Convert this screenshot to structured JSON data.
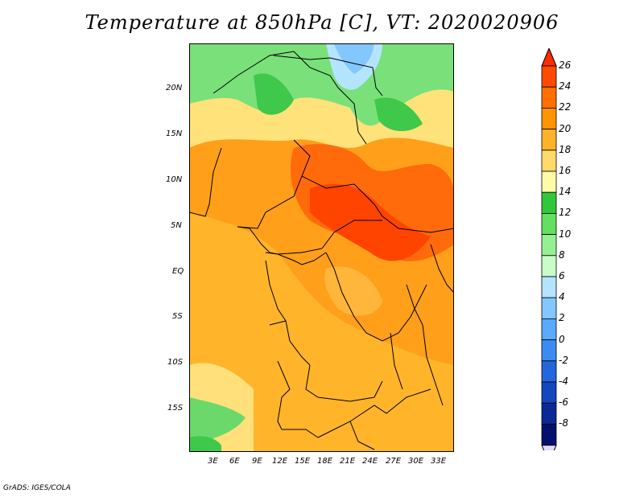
{
  "title": "Temperature at 850hPa [C], VT: 2020020906",
  "footer": "GrADS: IGES/COLA",
  "lat_ticks": [
    "20N",
    "15N",
    "10N",
    "5N",
    "EQ",
    "5S",
    "10S",
    "15S"
  ],
  "lon_ticks": [
    "3E",
    "6E",
    "9E",
    "12E",
    "15E",
    "18E",
    "21E",
    "24E",
    "27E",
    "30E",
    "33E"
  ],
  "colorbar": {
    "labels": [
      "26",
      "24",
      "22",
      "20",
      "18",
      "16",
      "14",
      "12",
      "10",
      "8",
      "6",
      "4",
      "2",
      "0",
      "-2",
      "-4",
      "-6",
      "-8"
    ],
    "colors": [
      "#ff2a00",
      "#ff4a00",
      "#ff7000",
      "#ff9400",
      "#ffb22a",
      "#ffda6a",
      "#fffaa8",
      "#2fc83a",
      "#64e060",
      "#94f090",
      "#c8fcc8",
      "#b4e4ff",
      "#82c8ff",
      "#5aaaff",
      "#3a8cf0",
      "#2466dc",
      "#1446be",
      "#0a2896",
      "#00126e",
      "#dcdcff"
    ],
    "palette_note": "colors ordered top (warm) to bottom (cold)"
  },
  "map": {
    "background_color": "#ff9f1a",
    "regions": [
      {
        "name": "north-green",
        "color": "#5ad262"
      },
      {
        "name": "north-yellow",
        "color": "#ffe27a"
      },
      {
        "name": "north-blue",
        "color": "#b4e4ff"
      },
      {
        "name": "central-red",
        "color": "#ff5a00"
      },
      {
        "name": "south-orange",
        "color": "#ffb830"
      },
      {
        "name": "southwest-green",
        "color": "#3fc84a"
      }
    ]
  }
}
